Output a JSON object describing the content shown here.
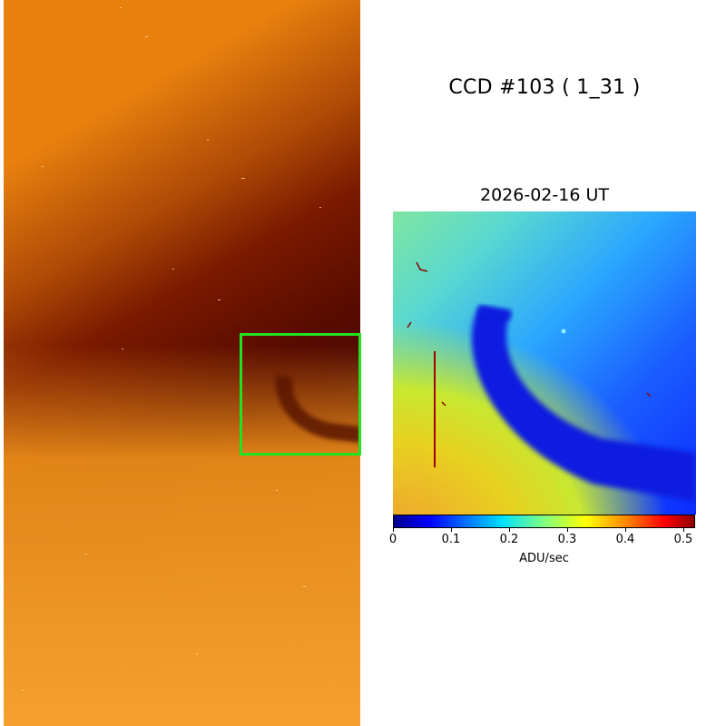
{
  "title": "CCD #103 ( 1_31 )",
  "date": "2026-02-16 UT",
  "colorbar": {
    "label": "ADU/sec",
    "ticks": [
      "0",
      "0.1",
      "0.2",
      "0.3",
      "0.4",
      "0.5"
    ]
  },
  "colors": {
    "zoom_box": "#22e022"
  }
}
